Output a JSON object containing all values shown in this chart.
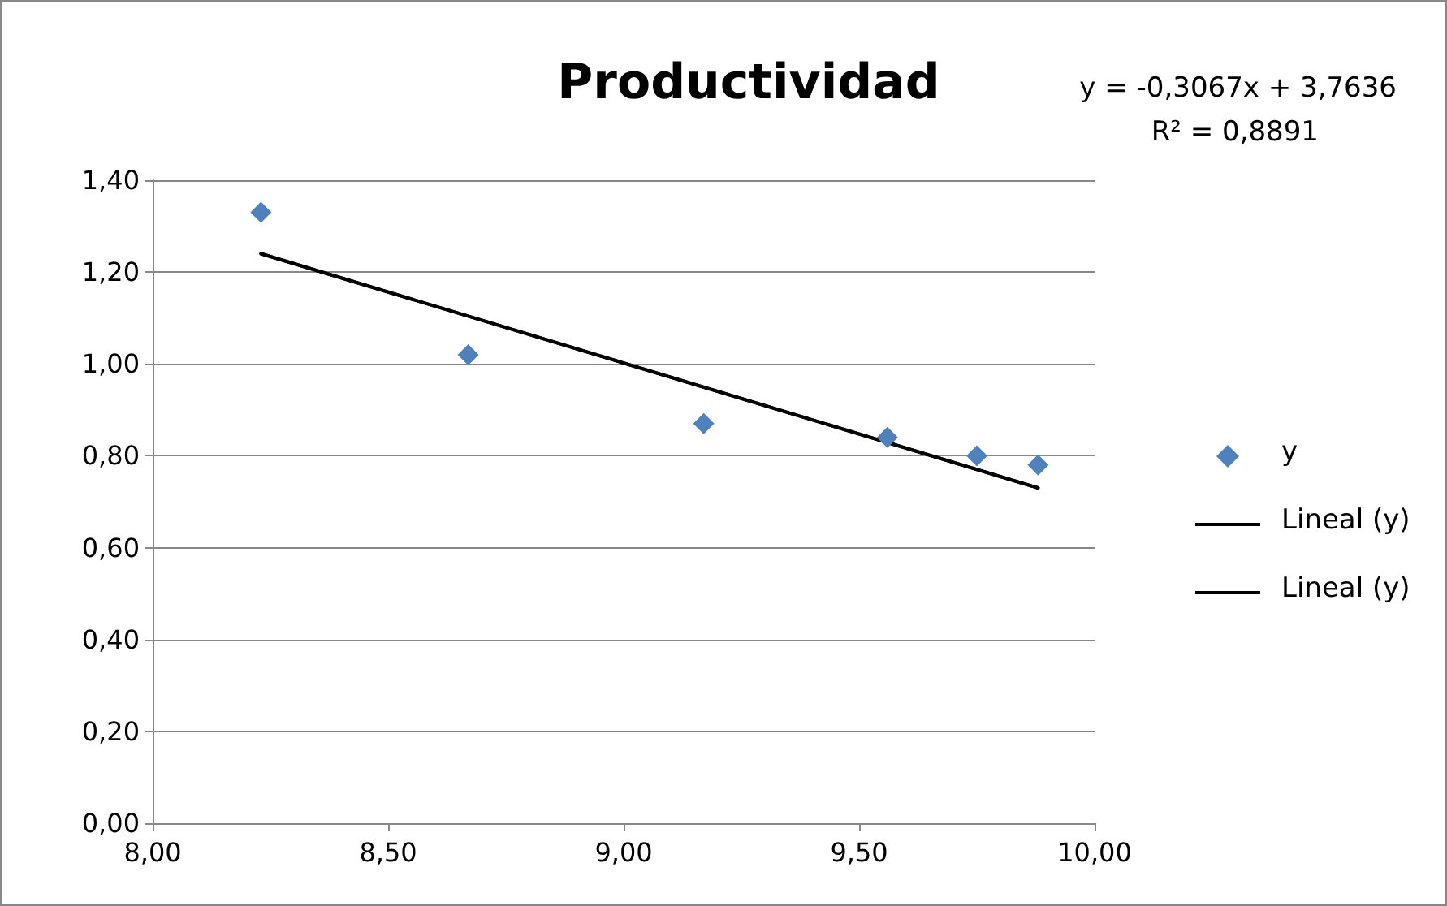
{
  "chart_data": {
    "type": "scatter",
    "title": "Productividad",
    "annotations": [
      "y = -0,3067x + 3,7636",
      "R² = 0,8891"
    ],
    "series": [
      {
        "name": "y",
        "color": "#4f81bd",
        "marker": "diamond",
        "x": [
          8.23,
          8.67,
          9.17,
          9.56,
          9.75,
          9.88
        ],
        "values": [
          1.33,
          1.02,
          0.87,
          0.84,
          0.8,
          0.78
        ]
      },
      {
        "name": "Lineal (y)",
        "type": "line",
        "marker": "none",
        "color": "#000000",
        "x": [
          8.23,
          9.88
        ],
        "values": [
          1.24,
          0.73
        ]
      },
      {
        "name": "Lineal (y)",
        "type": "line",
        "marker": "none",
        "color": "#000000",
        "x": [
          8.23,
          9.88
        ],
        "values": [
          1.24,
          0.73
        ]
      }
    ],
    "xlim": [
      8,
      10
    ],
    "xticks": [
      {
        "value": 8,
        "label": "8,00"
      },
      {
        "value": 8.5,
        "label": "8,50"
      },
      {
        "value": 9,
        "label": "9,00"
      },
      {
        "value": 9.5,
        "label": "9,50"
      },
      {
        "value": 10,
        "label": "10,00"
      }
    ],
    "ylim": [
      0,
      1.4
    ],
    "yticks": [
      {
        "value": 0,
        "label": "0,00"
      },
      {
        "value": 0.2,
        "label": "0,20"
      },
      {
        "value": 0.4,
        "label": "0,40"
      },
      {
        "value": 0.6,
        "label": "0,60"
      },
      {
        "value": 0.8,
        "label": "0,80"
      },
      {
        "value": 1,
        "label": "1,00"
      },
      {
        "value": 1.2,
        "label": "1,20"
      },
      {
        "value": 1.4,
        "label": "1,40"
      }
    ],
    "grid": "y",
    "legend": "right"
  }
}
